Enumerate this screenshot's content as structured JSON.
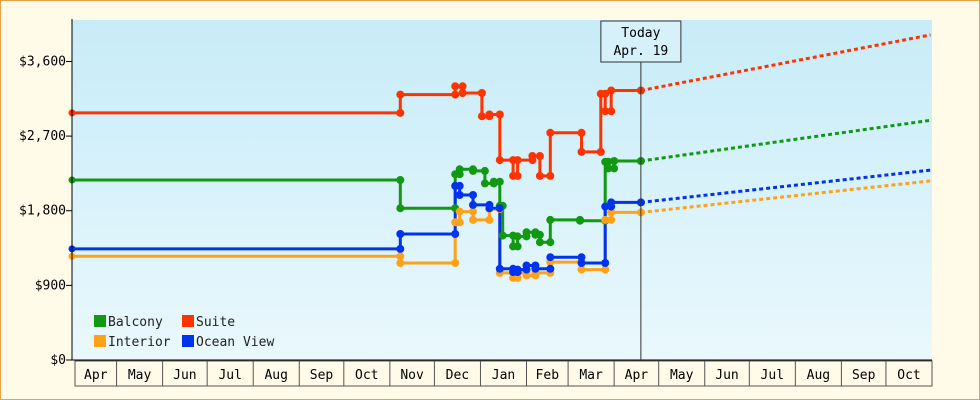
{
  "chart_data": {
    "type": "line",
    "title": "",
    "xlabel": "",
    "ylabel": "",
    "ylim": [
      0,
      4100
    ],
    "y_ticks": [
      0,
      900,
      1800,
      2700,
      3600
    ],
    "y_tick_labels": [
      "$0",
      "$900",
      "$1,800",
      "$2,700",
      "$3,600"
    ],
    "x_range": [
      "2018-04-01",
      "2019-10-31"
    ],
    "x_tick_labels": [
      "Apr",
      "May",
      "Jun",
      "Jul",
      "Aug",
      "Sep",
      "Oct",
      "Nov",
      "Dec",
      "Jan",
      "Feb",
      "Mar",
      "Apr",
      "May",
      "Jun",
      "Jul",
      "Aug",
      "Sep",
      "Oct"
    ],
    "grid": false,
    "legend_position": "bottom-left",
    "today": {
      "date": "2019-04-19",
      "label_line1": "Today",
      "label_line2": "Apr. 19"
    },
    "series": [
      {
        "name": "Balcony",
        "color": "#119911",
        "points": [
          [
            "2018-04-01",
            2170
          ],
          [
            "2018-11-08",
            2170
          ],
          [
            "2018-11-08",
            1830
          ],
          [
            "2018-12-15",
            1830
          ],
          [
            "2018-12-15",
            2240
          ],
          [
            "2018-12-18",
            2240
          ],
          [
            "2018-12-18",
            2300
          ],
          [
            "2018-12-27",
            2300
          ],
          [
            "2018-12-27",
            2280
          ],
          [
            "2019-01-04",
            2280
          ],
          [
            "2019-01-04",
            2130
          ],
          [
            "2019-01-10",
            2130
          ],
          [
            "2019-01-10",
            2150
          ],
          [
            "2019-01-14",
            2150
          ],
          [
            "2019-01-14",
            1860
          ],
          [
            "2019-01-16",
            1860
          ],
          [
            "2019-01-16",
            1500
          ],
          [
            "2019-01-23",
            1500
          ],
          [
            "2019-01-23",
            1370
          ],
          [
            "2019-01-26",
            1370
          ],
          [
            "2019-01-26",
            1490
          ],
          [
            "2019-02-01",
            1490
          ],
          [
            "2019-02-01",
            1540
          ],
          [
            "2019-02-07",
            1540
          ],
          [
            "2019-02-07",
            1510
          ],
          [
            "2019-02-10",
            1510
          ],
          [
            "2019-02-10",
            1420
          ],
          [
            "2019-02-17",
            1420
          ],
          [
            "2019-02-17",
            1690
          ],
          [
            "2019-03-09",
            1690
          ],
          [
            "2019-03-09",
            1680
          ],
          [
            "2019-03-26",
            1680
          ],
          [
            "2019-03-26",
            2390
          ],
          [
            "2019-03-28",
            2390
          ],
          [
            "2019-03-28",
            2310
          ],
          [
            "2019-04-01",
            2310
          ],
          [
            "2019-04-01",
            2400
          ],
          [
            "2019-04-19",
            2400
          ]
        ],
        "projection": [
          [
            "2019-04-19",
            2400
          ],
          [
            "2019-10-31",
            2890
          ]
        ]
      },
      {
        "name": "Suite",
        "color": "#ff3300",
        "points": [
          [
            "2018-04-01",
            2980
          ],
          [
            "2018-11-08",
            2980
          ],
          [
            "2018-11-08",
            3200
          ],
          [
            "2018-12-15",
            3200
          ],
          [
            "2018-12-15",
            3300
          ],
          [
            "2018-12-20",
            3300
          ],
          [
            "2018-12-20",
            3220
          ],
          [
            "2019-01-02",
            3220
          ],
          [
            "2019-01-02",
            2940
          ],
          [
            "2019-01-07",
            2940
          ],
          [
            "2019-01-07",
            2960
          ],
          [
            "2019-01-14",
            2960
          ],
          [
            "2019-01-14",
            2410
          ],
          [
            "2019-01-23",
            2410
          ],
          [
            "2019-01-23",
            2220
          ],
          [
            "2019-01-26",
            2220
          ],
          [
            "2019-01-26",
            2410
          ],
          [
            "2019-02-05",
            2410
          ],
          [
            "2019-02-05",
            2460
          ],
          [
            "2019-02-10",
            2460
          ],
          [
            "2019-02-10",
            2220
          ],
          [
            "2019-02-17",
            2220
          ],
          [
            "2019-02-17",
            2740
          ],
          [
            "2019-03-10",
            2740
          ],
          [
            "2019-03-10",
            2510
          ],
          [
            "2019-03-23",
            2510
          ],
          [
            "2019-03-23",
            3210
          ],
          [
            "2019-03-26",
            3210
          ],
          [
            "2019-03-26",
            3000
          ],
          [
            "2019-03-30",
            3000
          ],
          [
            "2019-03-30",
            3250
          ],
          [
            "2019-04-19",
            3250
          ]
        ],
        "projection": [
          [
            "2019-04-19",
            3250
          ],
          [
            "2019-10-31",
            3920
          ]
        ]
      },
      {
        "name": "Interior",
        "color": "#ffa21a",
        "points": [
          [
            "2018-04-01",
            1250
          ],
          [
            "2018-11-08",
            1250
          ],
          [
            "2018-11-08",
            1170
          ],
          [
            "2018-12-15",
            1170
          ],
          [
            "2018-12-15",
            1660
          ],
          [
            "2018-12-18",
            1660
          ],
          [
            "2018-12-18",
            1790
          ],
          [
            "2018-12-27",
            1790
          ],
          [
            "2018-12-27",
            1690
          ],
          [
            "2019-01-07",
            1690
          ],
          [
            "2019-01-07",
            1820
          ],
          [
            "2019-01-14",
            1820
          ],
          [
            "2019-01-14",
            1050
          ],
          [
            "2019-01-23",
            1050
          ],
          [
            "2019-01-23",
            990
          ],
          [
            "2019-01-26",
            990
          ],
          [
            "2019-01-26",
            1050
          ],
          [
            "2019-02-01",
            1050
          ],
          [
            "2019-02-01",
            1020
          ],
          [
            "2019-02-07",
            1020
          ],
          [
            "2019-02-07",
            1050
          ],
          [
            "2019-02-17",
            1050
          ],
          [
            "2019-02-17",
            1180
          ],
          [
            "2019-03-10",
            1180
          ],
          [
            "2019-03-10",
            1090
          ],
          [
            "2019-03-26",
            1090
          ],
          [
            "2019-03-26",
            1690
          ],
          [
            "2019-03-30",
            1690
          ],
          [
            "2019-03-30",
            1780
          ],
          [
            "2019-04-19",
            1780
          ]
        ],
        "projection": [
          [
            "2019-04-19",
            1780
          ],
          [
            "2019-10-31",
            2160
          ]
        ]
      },
      {
        "name": "Ocean View",
        "color": "#0033ee",
        "points": [
          [
            "2018-04-01",
            1340
          ],
          [
            "2018-11-08",
            1340
          ],
          [
            "2018-11-08",
            1520
          ],
          [
            "2018-12-15",
            1520
          ],
          [
            "2018-12-15",
            2100
          ],
          [
            "2018-12-18",
            2100
          ],
          [
            "2018-12-18",
            1990
          ],
          [
            "2018-12-27",
            1990
          ],
          [
            "2018-12-27",
            1870
          ],
          [
            "2019-01-07",
            1870
          ],
          [
            "2019-01-07",
            1830
          ],
          [
            "2019-01-14",
            1830
          ],
          [
            "2019-01-14",
            1100
          ],
          [
            "2019-01-23",
            1100
          ],
          [
            "2019-01-23",
            1060
          ],
          [
            "2019-01-26",
            1060
          ],
          [
            "2019-01-26",
            1090
          ],
          [
            "2019-02-01",
            1090
          ],
          [
            "2019-02-01",
            1140
          ],
          [
            "2019-02-07",
            1140
          ],
          [
            "2019-02-07",
            1100
          ],
          [
            "2019-02-17",
            1100
          ],
          [
            "2019-02-17",
            1240
          ],
          [
            "2019-03-10",
            1240
          ],
          [
            "2019-03-10",
            1170
          ],
          [
            "2019-03-26",
            1170
          ],
          [
            "2019-03-26",
            1850
          ],
          [
            "2019-03-30",
            1850
          ],
          [
            "2019-03-30",
            1900
          ],
          [
            "2019-04-19",
            1900
          ]
        ],
        "projection": [
          [
            "2019-04-19",
            1900
          ],
          [
            "2019-10-31",
            2290
          ]
        ]
      }
    ]
  }
}
